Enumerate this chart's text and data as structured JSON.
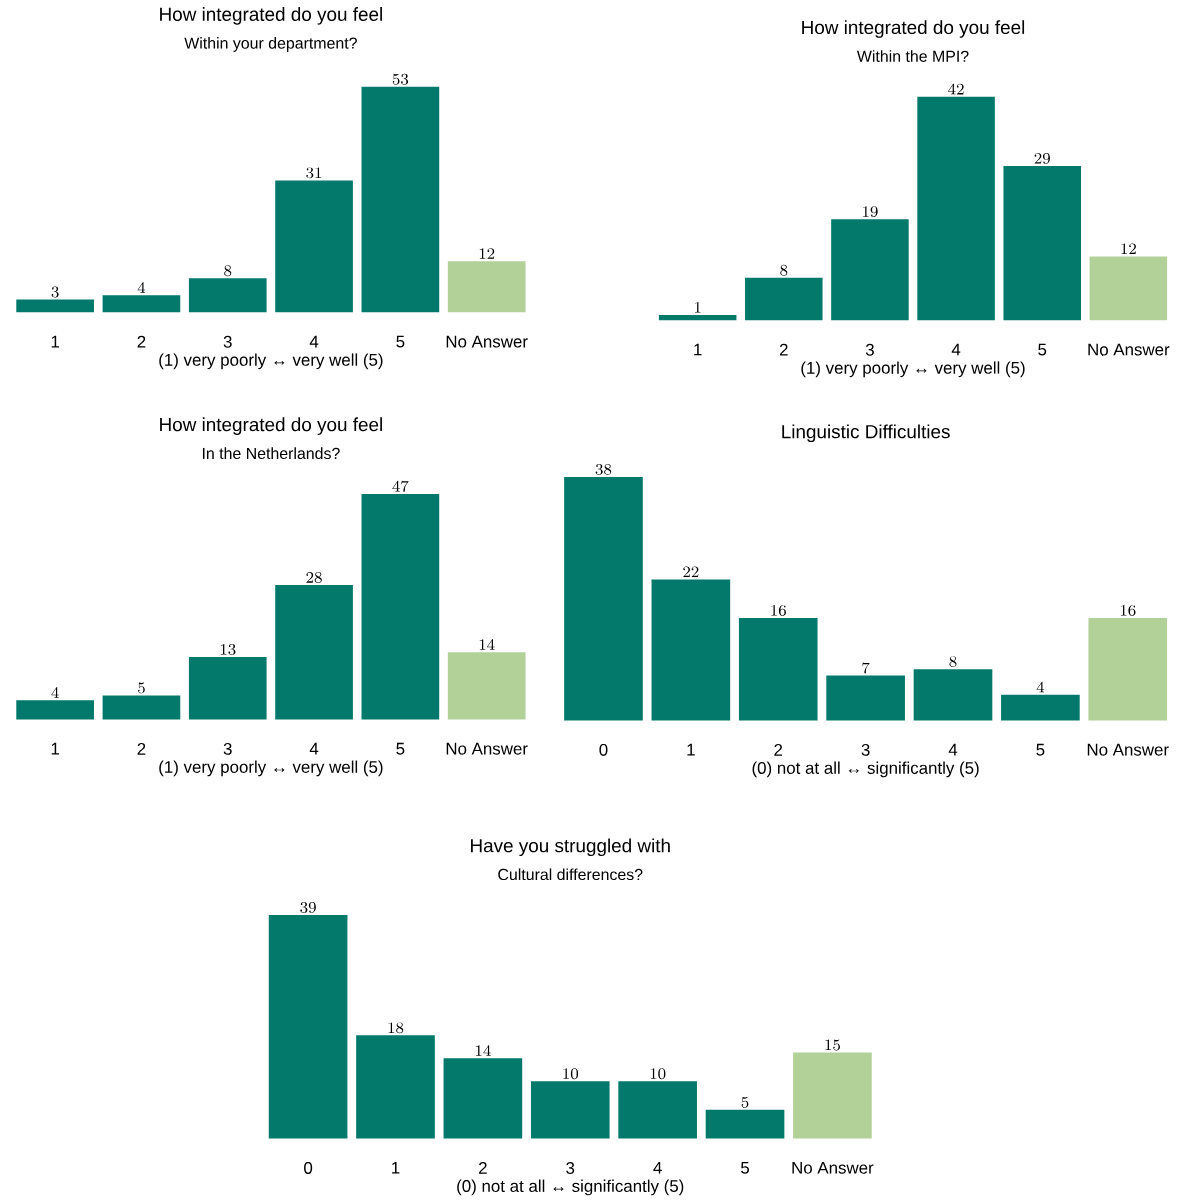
{
  "chart_data": [
    {
      "type": "bar",
      "title": "How integrated do you feel",
      "subtitle": "Within your department?",
      "xlabel": "(1) very poorly ↔ very well (5)",
      "categories": [
        "1",
        "2",
        "3",
        "4",
        "5",
        "No Answer"
      ],
      "values": [
        3,
        4,
        8,
        31,
        53,
        12
      ],
      "colors": [
        "#02796b",
        "#02796b",
        "#02796b",
        "#02796b",
        "#02796b",
        "#b1d198"
      ],
      "data_labels": true
    },
    {
      "type": "bar",
      "title": "How integrated do you feel",
      "subtitle": "Within the MPI?",
      "xlabel": "(1) very poorly ↔ very well (5)",
      "categories": [
        "1",
        "2",
        "3",
        "4",
        "5",
        "No Answer"
      ],
      "values": [
        1,
        8,
        19,
        42,
        29,
        12
      ],
      "colors": [
        "#02796b",
        "#02796b",
        "#02796b",
        "#02796b",
        "#02796b",
        "#b1d198"
      ],
      "data_labels": true
    },
    {
      "type": "bar",
      "title": "How integrated do you feel",
      "subtitle": "In the Netherlands?",
      "xlabel": "(1) very poorly ↔ very well (5)",
      "categories": [
        "1",
        "2",
        "3",
        "4",
        "5",
        "No Answer"
      ],
      "values": [
        4,
        5,
        13,
        28,
        47,
        14
      ],
      "colors": [
        "#02796b",
        "#02796b",
        "#02796b",
        "#02796b",
        "#02796b",
        "#b1d198"
      ],
      "data_labels": true
    },
    {
      "type": "bar",
      "title": "Linguistic Difficulties",
      "xlabel": "(0) not at all ↔ significantly (5)",
      "categories": [
        "0",
        "1",
        "2",
        "3",
        "4",
        "5",
        "No Answer"
      ],
      "values": [
        38,
        22,
        16,
        7,
        8,
        4,
        16
      ],
      "colors": [
        "#02796b",
        "#02796b",
        "#02796b",
        "#02796b",
        "#02796b",
        "#02796b",
        "#b1d198"
      ],
      "data_labels": true
    },
    {
      "type": "bar",
      "title": "Have you struggled with",
      "subtitle": "Cultural differences?",
      "xlabel": "(0) not at all ↔ significantly (5)",
      "categories": [
        "0",
        "1",
        "2",
        "3",
        "4",
        "5",
        "No Answer"
      ],
      "values": [
        39,
        18,
        14,
        10,
        10,
        5,
        15
      ],
      "colors": [
        "#02796b",
        "#02796b",
        "#02796b",
        "#02796b",
        "#02796b",
        "#02796b",
        "#b1d198"
      ],
      "data_labels": true
    }
  ]
}
